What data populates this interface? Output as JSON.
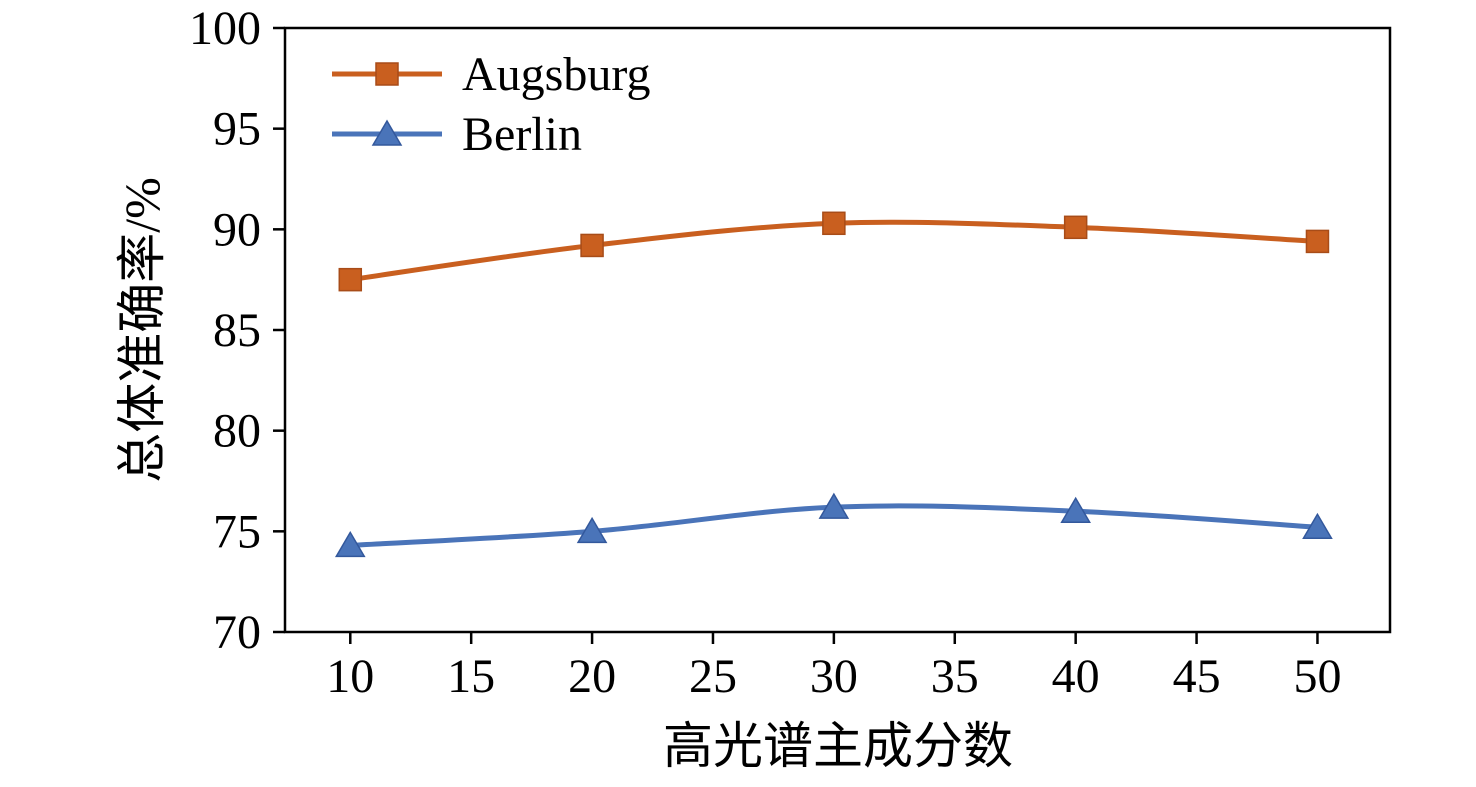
{
  "chart_data": {
    "type": "line",
    "title": "",
    "xlabel": "高光谱主成分数",
    "ylabel": "总体准确率/%",
    "x": [
      10,
      20,
      30,
      40,
      50
    ],
    "xticks": [
      10,
      15,
      20,
      25,
      30,
      35,
      40,
      45,
      50
    ],
    "yticks": [
      70,
      75,
      80,
      85,
      90,
      95,
      100
    ],
    "xlim": [
      7.3,
      53
    ],
    "ylim": [
      70,
      100
    ],
    "grid": false,
    "legend_position": "top-left",
    "series": [
      {
        "name": "Augsburg",
        "marker": "square",
        "color": "#c95f1f",
        "marker_edge": "#a84c18",
        "values": [
          87.5,
          89.2,
          90.3,
          90.1,
          89.4
        ]
      },
      {
        "name": "Berlin",
        "marker": "triangle",
        "color": "#4a74b9",
        "marker_edge": "#33589c",
        "values": [
          74.3,
          75.0,
          76.2,
          76.0,
          75.2
        ]
      }
    ],
    "axis_color": "#000000",
    "text_color": "#000000"
  }
}
